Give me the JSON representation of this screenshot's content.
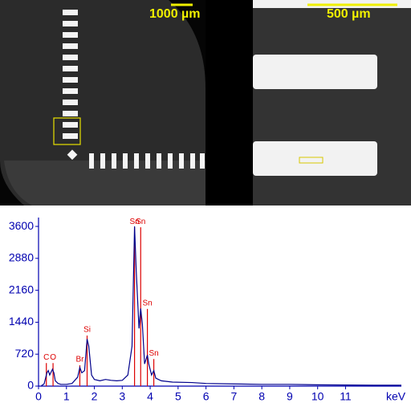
{
  "images": [
    {
      "scale_label": "1000 µm"
    },
    {
      "scale_label": "500 µm"
    }
  ],
  "chart_data": {
    "type": "line",
    "x_label": "keV",
    "x": [
      0.1,
      0.2,
      0.3,
      0.35,
      0.4,
      0.5,
      0.55,
      0.6,
      0.7,
      0.8,
      1.0,
      1.2,
      1.4,
      1.48,
      1.55,
      1.65,
      1.74,
      1.8,
      1.9,
      2.0,
      2.2,
      2.4,
      2.6,
      2.8,
      3.0,
      3.2,
      3.35,
      3.44,
      3.5,
      3.6,
      3.66,
      3.72,
      3.8,
      3.9,
      3.95,
      4.05,
      4.13,
      4.2,
      4.4,
      4.8,
      5.5,
      6,
      7,
      8,
      9,
      10,
      11,
      12,
      13
    ],
    "series": [
      {
        "color": "#00008b",
        "values": [
          10,
          50,
          300,
          350,
          250,
          380,
          300,
          120,
          60,
          40,
          40,
          60,
          200,
          420,
          300,
          350,
          1060,
          900,
          250,
          150,
          120,
          150,
          130,
          120,
          130,
          250,
          900,
          3600,
          2600,
          1300,
          1750,
          1400,
          500,
          700,
          500,
          250,
          350,
          180,
          120,
          90,
          80,
          60,
          50,
          40,
          40,
          30,
          25,
          20,
          20
        ]
      }
    ],
    "peaks": [
      {
        "label": "C",
        "energy": 0.28,
        "height": 520,
        "color": "#dd0000"
      },
      {
        "label": "O",
        "energy": 0.52,
        "height": 520,
        "color": "#dd0000"
      },
      {
        "label": "Br",
        "energy": 1.48,
        "height": 470,
        "color": "#dd0000"
      },
      {
        "label": "Si",
        "energy": 1.74,
        "height": 1140,
        "color": "#dd0000"
      },
      {
        "label": "Sn",
        "energy": 3.44,
        "height": 3580,
        "color": "#dd0000"
      },
      {
        "label": "Sn",
        "energy": 3.66,
        "height": 3580,
        "color": "#dd0000"
      },
      {
        "label": "Sn",
        "energy": 3.9,
        "height": 1740,
        "color": "#dd0000"
      },
      {
        "label": "Sn",
        "energy": 4.13,
        "height": 610,
        "color": "#dd0000"
      }
    ],
    "xlim": [
      0,
      13
    ],
    "xticks": [
      0,
      1,
      2,
      3,
      4,
      5,
      6,
      7,
      8,
      9,
      10,
      11
    ],
    "ylim": [
      0,
      3800
    ],
    "yticks": [
      0,
      720,
      1440,
      2160,
      2880,
      3600
    ]
  }
}
